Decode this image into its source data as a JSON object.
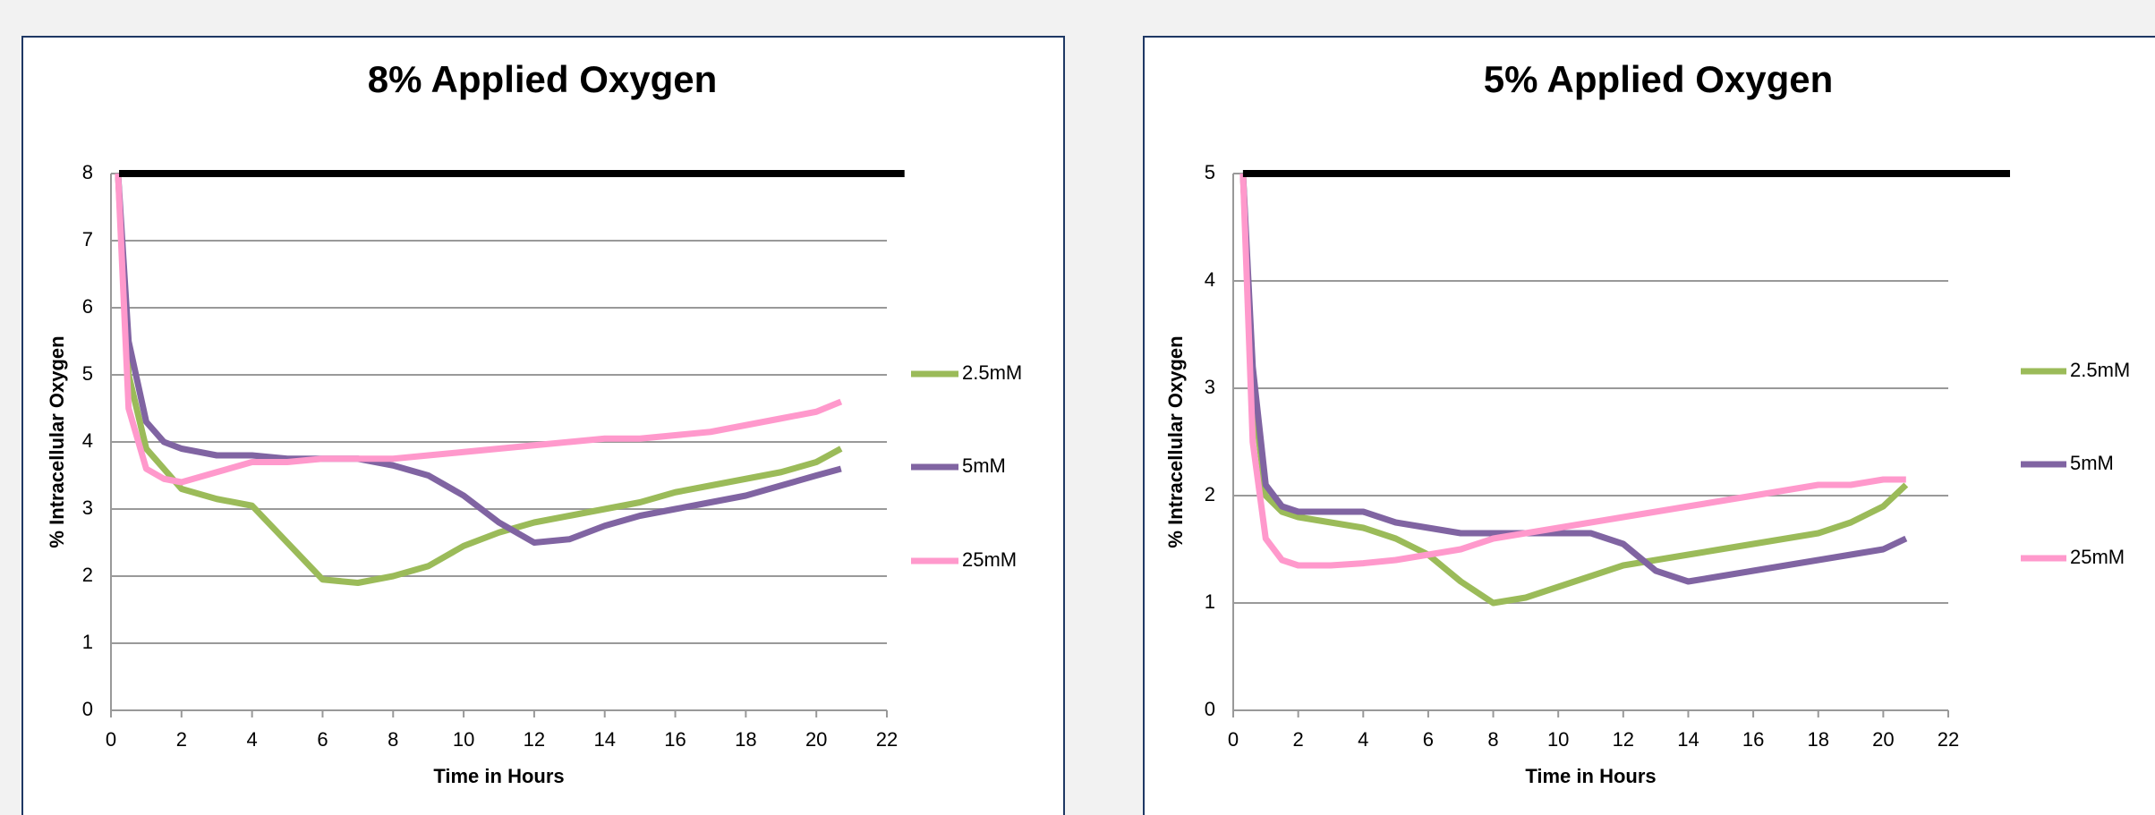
{
  "chart_data": [
    {
      "type": "line",
      "title": "8% Applied Oxygen",
      "x_label": "Time in Hours",
      "y_label": "% Intracellular Oxygen",
      "x": [
        0.2,
        0.5,
        1,
        1.5,
        2,
        3,
        4,
        5,
        6,
        7,
        8,
        9,
        10,
        11,
        12,
        13,
        14,
        15,
        16,
        17,
        18,
        19,
        20,
        20.7
      ],
      "series": [
        {
          "name": "2.5mM",
          "color": "#9bbb59",
          "values": [
            8,
            5,
            3.9,
            3.6,
            3.3,
            3.15,
            3.05,
            2.5,
            1.95,
            1.9,
            2.0,
            2.15,
            2.45,
            2.65,
            2.8,
            2.9,
            3.0,
            3.1,
            3.25,
            3.35,
            3.45,
            3.55,
            3.7,
            3.9
          ]
        },
        {
          "name": "5mM",
          "color": "#8064a2",
          "values": [
            8,
            5.5,
            4.3,
            4.0,
            3.9,
            3.8,
            3.8,
            3.75,
            3.75,
            3.75,
            3.65,
            3.5,
            3.2,
            2.8,
            2.5,
            2.55,
            2.75,
            2.9,
            3.0,
            3.1,
            3.2,
            3.35,
            3.5,
            3.6
          ]
        },
        {
          "name": "25mM",
          "color": "#ff99cc",
          "values": [
            8,
            4.5,
            3.6,
            3.45,
            3.4,
            3.55,
            3.7,
            3.7,
            3.75,
            3.75,
            3.75,
            3.8,
            3.85,
            3.9,
            3.95,
            4.0,
            4.05,
            4.05,
            4.1,
            4.15,
            4.25,
            4.35,
            4.45,
            4.6
          ]
        }
      ],
      "reference": {
        "y": 8,
        "x": [
          0.23,
          22.5
        ],
        "color": "#000000"
      },
      "xlim": [
        0,
        22
      ],
      "xticks": [
        0,
        2,
        4,
        6,
        8,
        10,
        12,
        14,
        16,
        18,
        20,
        22
      ],
      "ylim": [
        0,
        8
      ],
      "yticks": [
        0,
        1,
        2,
        3,
        4,
        5,
        6,
        7,
        8
      ],
      "grid": true,
      "legend": "right"
    },
    {
      "type": "line",
      "title": "5% Applied Oxygen",
      "x_label": "Time in Hours",
      "y_label": "% Intracellular Oxygen",
      "x": [
        0.3,
        0.6,
        1,
        1.5,
        2,
        3,
        4,
        5,
        6,
        7,
        8,
        9,
        10,
        11,
        12,
        13,
        14,
        15,
        16,
        17,
        18,
        19,
        20,
        20.7
      ],
      "series": [
        {
          "name": "2.5mM",
          "color": "#9bbb59",
          "values": [
            5,
            3,
            2.0,
            1.85,
            1.8,
            1.75,
            1.7,
            1.6,
            1.45,
            1.2,
            1.0,
            1.05,
            1.15,
            1.25,
            1.35,
            1.4,
            1.45,
            1.5,
            1.55,
            1.6,
            1.65,
            1.75,
            1.9,
            2.1
          ]
        },
        {
          "name": "5mM",
          "color": "#8064a2",
          "values": [
            5,
            3.2,
            2.1,
            1.9,
            1.85,
            1.85,
            1.85,
            1.75,
            1.7,
            1.65,
            1.65,
            1.65,
            1.65,
            1.65,
            1.55,
            1.3,
            1.2,
            1.25,
            1.3,
            1.35,
            1.4,
            1.45,
            1.5,
            1.6
          ]
        },
        {
          "name": "25mM",
          "color": "#ff99cc",
          "values": [
            5,
            2.5,
            1.6,
            1.4,
            1.35,
            1.35,
            1.37,
            1.4,
            1.45,
            1.5,
            1.6,
            1.65,
            1.7,
            1.75,
            1.8,
            1.85,
            1.9,
            1.95,
            2.0,
            2.05,
            2.1,
            2.1,
            2.15,
            2.15
          ]
        }
      ],
      "reference": {
        "y": 5,
        "x": [
          0.3,
          23.9
        ],
        "color": "#000000"
      },
      "xlim": [
        0,
        22
      ],
      "xticks": [
        0,
        2,
        4,
        6,
        8,
        10,
        12,
        14,
        16,
        18,
        20,
        22
      ],
      "ylim": [
        0,
        5
      ],
      "yticks": [
        0,
        1,
        2,
        3,
        4,
        5
      ],
      "grid": true,
      "legend": "right"
    }
  ]
}
